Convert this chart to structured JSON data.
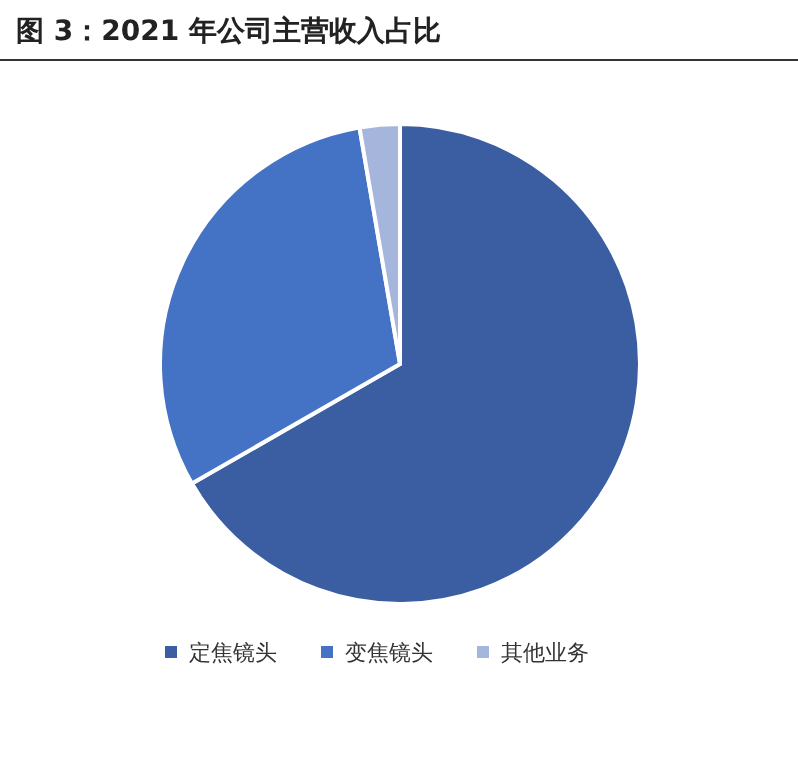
{
  "chart_data": {
    "type": "pie",
    "title": "图 3：2021 年公司主营收入占比",
    "categories": [
      "定焦镜头",
      "变焦镜头",
      "其他业务"
    ],
    "values": [
      66.7,
      30.6,
      2.7
    ],
    "colors": [
      "#3a5ea1",
      "#4472c4",
      "#a5b5dc"
    ],
    "legend": "bottom"
  }
}
